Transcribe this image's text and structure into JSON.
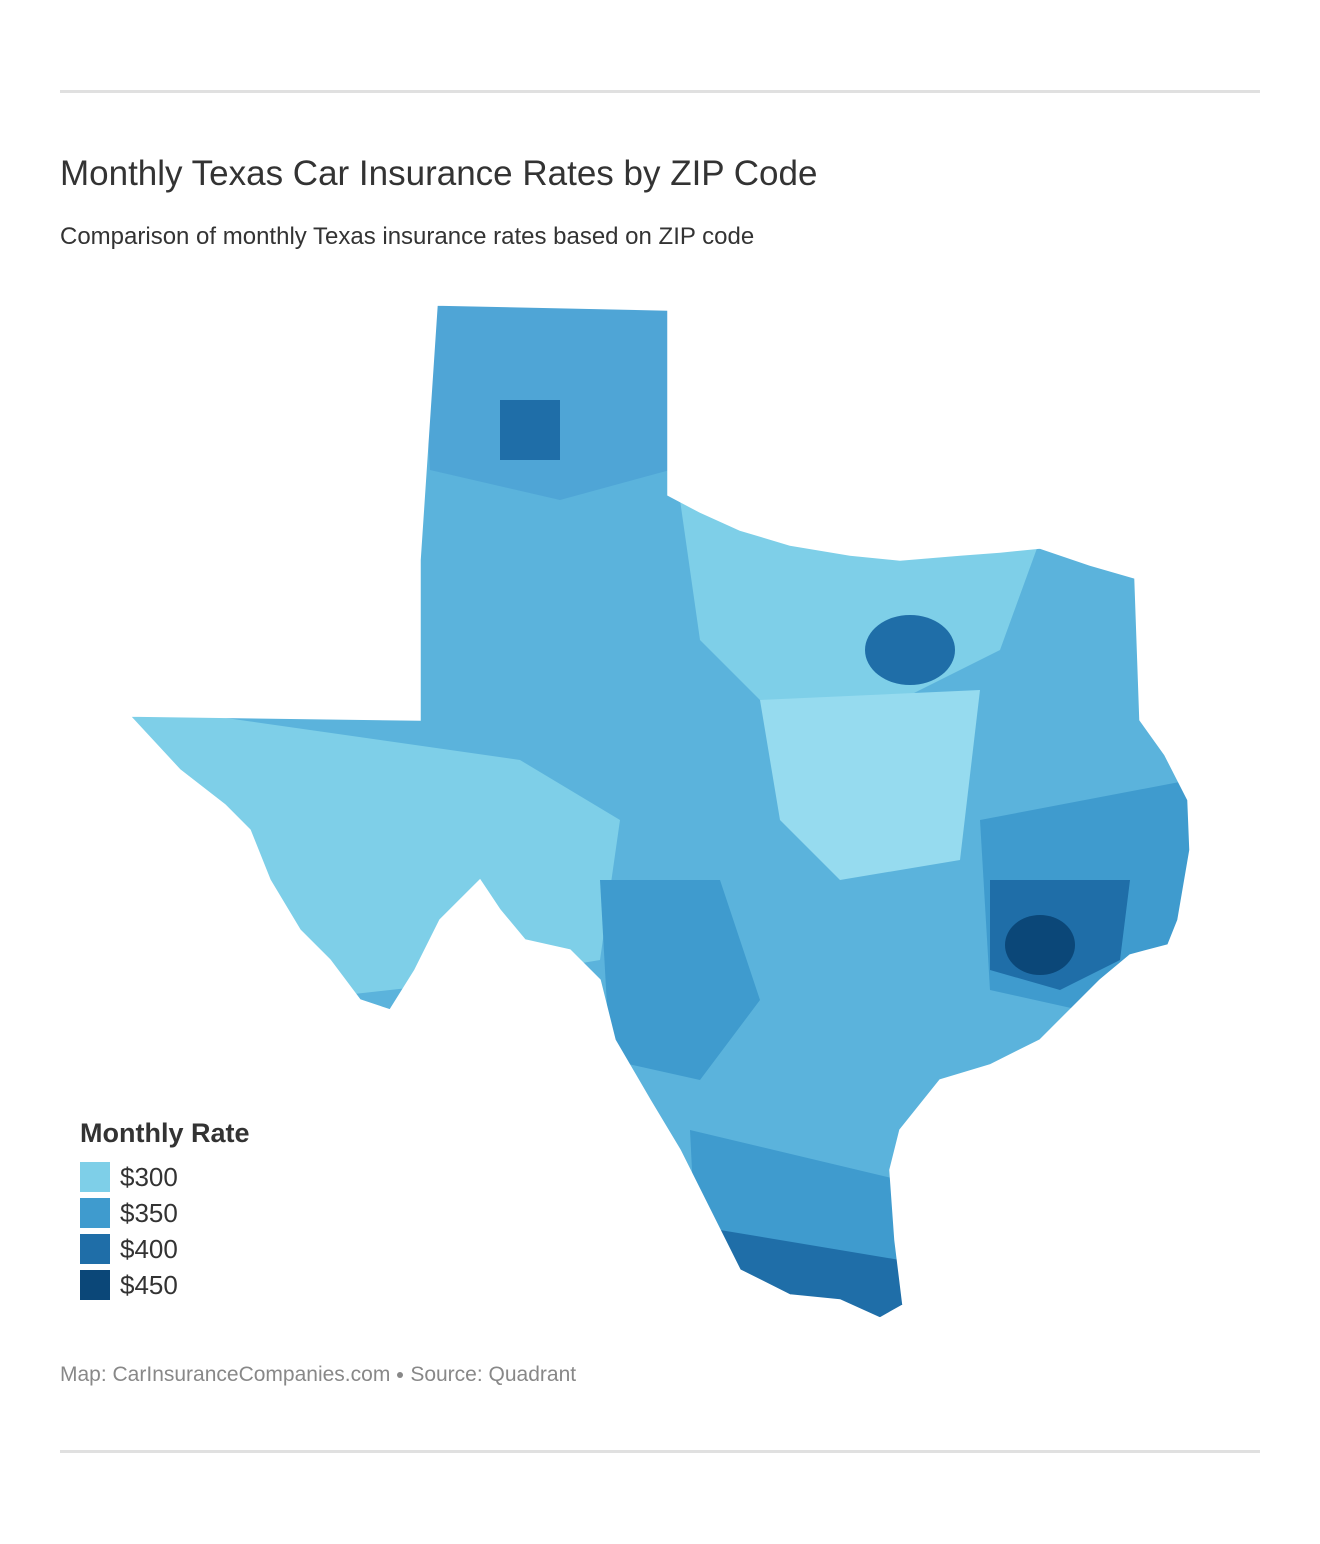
{
  "header": {
    "title": "Monthly Texas Car Insurance Rates by ZIP Code",
    "subtitle": "Comparison of monthly Texas insurance rates based on ZIP code"
  },
  "legend": {
    "title": "Monthly Rate",
    "items": [
      {
        "label": "$300",
        "color": "#7ecfe8"
      },
      {
        "label": "$350",
        "color": "#3f9bce"
      },
      {
        "label": "$400",
        "color": "#1f6ea8"
      },
      {
        "label": "$450",
        "color": "#0b4778"
      }
    ]
  },
  "footer": {
    "map_credit": "Map: CarInsuranceCompanies.com",
    "source": "Source: Quadrant"
  }
}
